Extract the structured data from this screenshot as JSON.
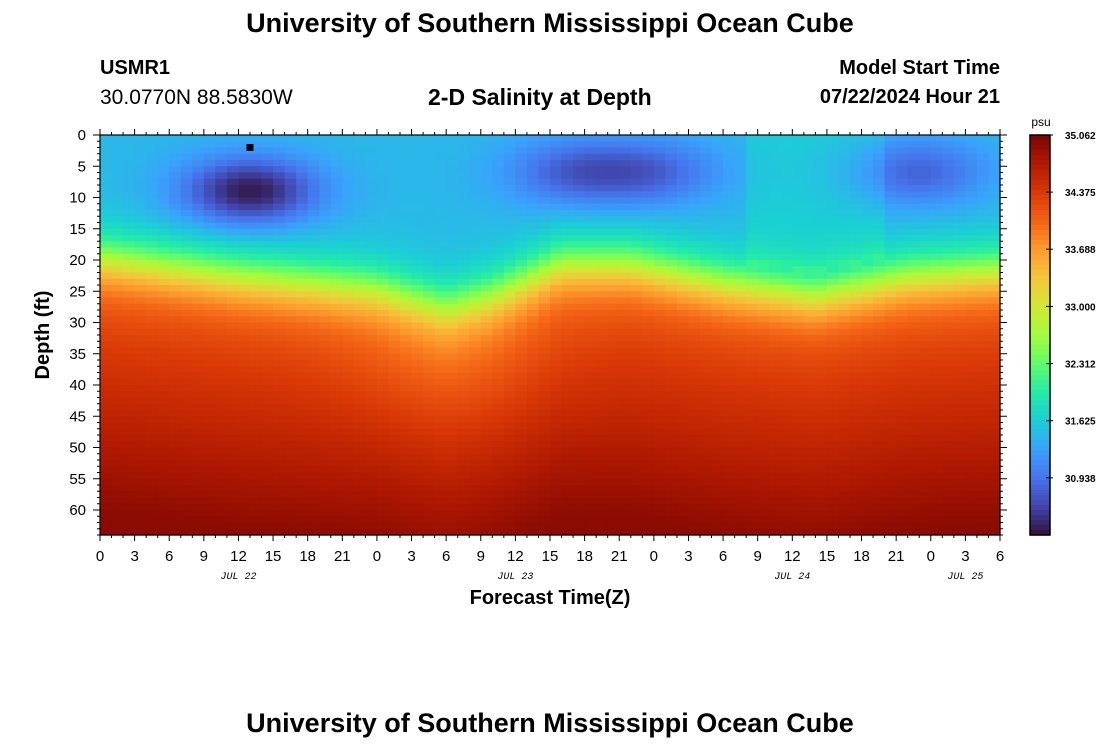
{
  "header": {
    "title": "University of Southern Mississippi Ocean Cube",
    "station": "USMR1",
    "coords": "30.0770N  88.5830W",
    "subtitle": "2-D Salinity at Depth",
    "start_label": "Model Start Time",
    "start_value": "07/22/2024 Hour 21"
  },
  "footer": {
    "title": "University of Southern Mississippi Ocean Cube"
  },
  "chart_data": {
    "type": "heatmap",
    "title": "2-D Salinity at Depth",
    "xlabel": "Forecast Time(Z)",
    "ylabel": "Depth (ft)",
    "x_ticks": [
      "0",
      "3",
      "6",
      "9",
      "12",
      "15",
      "18",
      "21",
      "0",
      "3",
      "6",
      "9",
      "12",
      "15",
      "18",
      "21",
      "0",
      "3",
      "6",
      "9",
      "12",
      "15",
      "18",
      "21",
      "0",
      "3",
      "6"
    ],
    "x_range_hours": [
      0,
      78
    ],
    "date_labels": [
      {
        "label": "JUL 22",
        "hour": 12
      },
      {
        "label": "JUL 23",
        "hour": 36
      },
      {
        "label": "JUL 24",
        "hour": 60
      },
      {
        "label": "JUL 25",
        "hour": 75
      }
    ],
    "y_ticks": [
      "0",
      "5",
      "10",
      "15",
      "20",
      "25",
      "30",
      "35",
      "40",
      "45",
      "50",
      "55",
      "60"
    ],
    "y_range_ft": [
      0,
      64
    ],
    "colorbar": {
      "unit": "psu",
      "min": 30.25,
      "max": 35.062,
      "tick_labels": [
        "35.062",
        "34.375",
        "33.688",
        "33.000",
        "32.312",
        "31.625",
        "30.938"
      ],
      "tick_values": [
        35.062,
        34.375,
        33.688,
        33.0,
        32.312,
        31.625,
        30.938
      ],
      "colors": [
        "#30123b",
        "#4145ab",
        "#4675ed",
        "#39a2fc",
        "#1bcfd4",
        "#24eca6",
        "#61fc6c",
        "#a4fc3b",
        "#d1e834",
        "#f3c63a",
        "#fe9b2d",
        "#f36315",
        "#d93806",
        "#b11901",
        "#7a0403"
      ]
    },
    "field": {
      "time_step_hours": 1,
      "depth_step_ft": 1,
      "fresh_cores": [
        {
          "hour": 13,
          "depth_ft": 9,
          "strength": 1.0
        },
        {
          "hour": 41,
          "depth_ft": 6,
          "strength": 0.55
        },
        {
          "hour": 48,
          "depth_ft": 6,
          "strength": 0.5
        },
        {
          "hour": 71,
          "depth_ft": 6,
          "strength": 0.55
        }
      ],
      "halocline_depth_by_hour": [
        [
          0,
          18
        ],
        [
          12,
          21
        ],
        [
          24,
          23
        ],
        [
          30,
          26
        ],
        [
          34,
          24
        ],
        [
          40,
          19
        ],
        [
          46,
          19
        ],
        [
          54,
          22
        ],
        [
          62,
          24
        ],
        [
          70,
          21
        ],
        [
          78,
          20
        ]
      ],
      "marker": {
        "hour": 13,
        "depth_ft": 2
      }
    }
  }
}
